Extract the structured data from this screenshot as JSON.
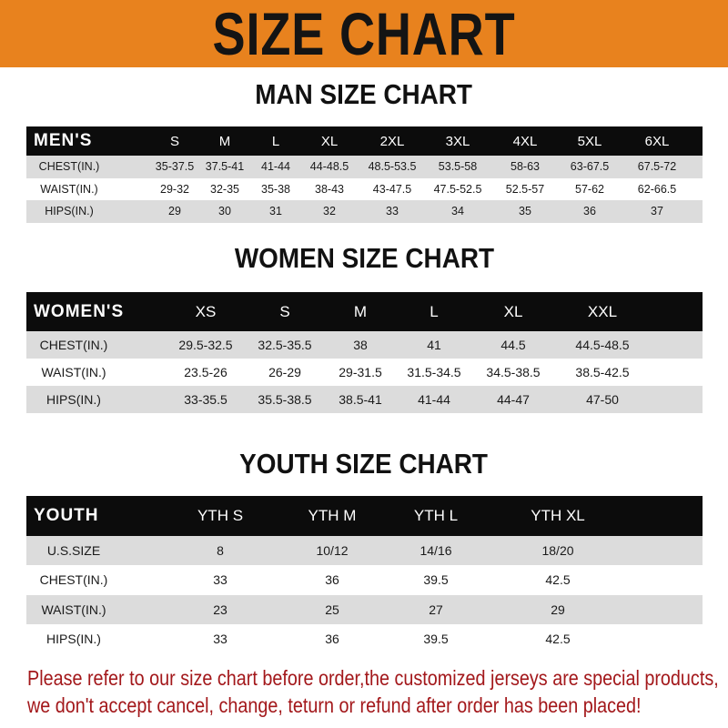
{
  "banner": {
    "title": "SIZE CHART",
    "color": "#E8821E"
  },
  "men": {
    "title": "MAN SIZE CHART",
    "header": [
      "MEN'S",
      "S",
      "M",
      "L",
      "XL",
      "2XL",
      "3XL",
      "4XL",
      "5XL",
      "6XL"
    ],
    "rows": [
      [
        "CHEST(IN.)",
        "35-37.5",
        "37.5-41",
        "41-44",
        "44-48.5",
        "48.5-53.5",
        "53.5-58",
        "58-63",
        "63-67.5",
        "67.5-72"
      ],
      [
        "WAIST(IN.)",
        "29-32",
        "32-35",
        "35-38",
        "38-43",
        "43-47.5",
        "47.5-52.5",
        "52.5-57",
        "57-62",
        "62-66.5"
      ],
      [
        "HIPS(IN.)",
        "29",
        "30",
        "31",
        "32",
        "33",
        "34",
        "35",
        "36",
        "37"
      ]
    ]
  },
  "women": {
    "title": "WOMEN SIZE CHART",
    "header": [
      "WOMEN'S",
      "XS",
      "S",
      "M",
      "L",
      "XL",
      "XXL"
    ],
    "rows": [
      [
        "CHEST(IN.)",
        "29.5-32.5",
        "32.5-35.5",
        "38",
        "41",
        "44.5",
        "44.5-48.5"
      ],
      [
        "WAIST(IN.)",
        "23.5-26",
        "26-29",
        "29-31.5",
        "31.5-34.5",
        "34.5-38.5",
        "38.5-42.5"
      ],
      [
        "HIPS(IN.)",
        "33-35.5",
        "35.5-38.5",
        "38.5-41",
        "41-44",
        "44-47",
        "47-50"
      ]
    ]
  },
  "youth": {
    "title": "YOUTH SIZE CHART",
    "header": [
      "YOUTH",
      "YTH S",
      "YTH M",
      "YTH L",
      "YTH XL"
    ],
    "rows": [
      [
        "U.S.SIZE",
        "8",
        "10/12",
        "14/16",
        "18/20"
      ],
      [
        "CHEST(IN.)",
        "33",
        "36",
        "39.5",
        "42.5"
      ],
      [
        "WAIST(IN.)",
        "23",
        "25",
        "27",
        "29"
      ],
      [
        "HIPS(IN.)",
        "33",
        "36",
        "39.5",
        "42.5"
      ]
    ]
  },
  "notice": {
    "line1": "Please refer to our size chart before order,the customized jerseys are special products,",
    "line2": "we don't accept cancel, change, teturn or refund after order has been placed!",
    "color": "#A3181B"
  }
}
